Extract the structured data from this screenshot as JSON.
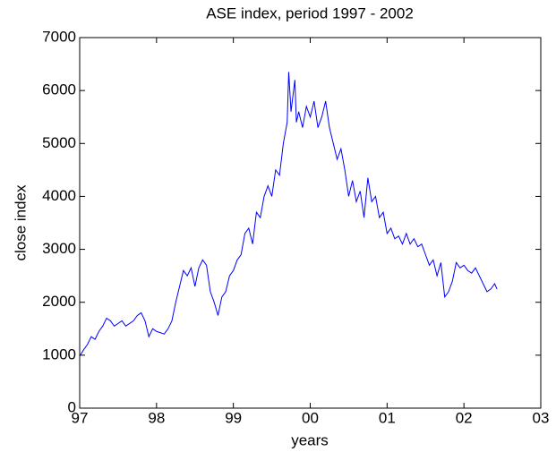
{
  "chart_data": {
    "type": "line",
    "title": "ASE index, period 1997 - 2002",
    "xlabel": "years",
    "ylabel": "close index",
    "x": [
      1997.0,
      1997.05,
      1997.1,
      1997.15,
      1997.2,
      1997.25,
      1997.3,
      1997.35,
      1997.4,
      1997.45,
      1997.5,
      1997.55,
      1997.6,
      1997.7,
      1997.75,
      1997.8,
      1997.85,
      1997.9,
      1997.95,
      1998.0,
      1998.1,
      1998.15,
      1998.2,
      1998.25,
      1998.3,
      1998.35,
      1998.4,
      1998.45,
      1998.5,
      1998.55,
      1998.6,
      1998.65,
      1998.7,
      1998.75,
      1998.8,
      1998.85,
      1998.9,
      1998.95,
      1999.0,
      1999.05,
      1999.1,
      1999.15,
      1999.2,
      1999.25,
      1999.3,
      1999.35,
      1999.4,
      1999.45,
      1999.5,
      1999.55,
      1999.6,
      1999.65,
      1999.7,
      1999.72,
      1999.75,
      1999.8,
      1999.82,
      1999.85,
      1999.9,
      1999.95,
      2000.0,
      2000.05,
      2000.1,
      2000.15,
      2000.2,
      2000.25,
      2000.3,
      2000.35,
      2000.4,
      2000.45,
      2000.5,
      2000.55,
      2000.6,
      2000.65,
      2000.7,
      2000.75,
      2000.8,
      2000.85,
      2000.9,
      2000.95,
      2001.0,
      2001.05,
      2001.1,
      2001.15,
      2001.2,
      2001.25,
      2001.3,
      2001.35,
      2001.4,
      2001.45,
      2001.5,
      2001.55,
      2001.6,
      2001.65,
      2001.7,
      2001.75,
      2001.8,
      2001.85,
      2001.9,
      2001.95,
      2002.0,
      2002.05,
      2002.1,
      2002.15,
      2002.2,
      2002.25,
      2002.3,
      2002.35,
      2002.4,
      2002.43
    ],
    "series": [
      {
        "name": "ASE",
        "color": "#0000ff",
        "values": [
          980,
          1100,
          1200,
          1350,
          1300,
          1450,
          1550,
          1700,
          1650,
          1550,
          1600,
          1650,
          1550,
          1650,
          1750,
          1800,
          1650,
          1350,
          1500,
          1450,
          1400,
          1500,
          1650,
          2000,
          2300,
          2600,
          2500,
          2650,
          2300,
          2650,
          2800,
          2700,
          2200,
          2000,
          1750,
          2100,
          2200,
          2500,
          2600,
          2800,
          2900,
          3300,
          3400,
          3100,
          3700,
          3600,
          4000,
          4200,
          4000,
          4500,
          4400,
          5000,
          5400,
          6350,
          5600,
          6200,
          5400,
          5600,
          5300,
          5700,
          5500,
          5800,
          5300,
          5500,
          5800,
          5300,
          5000,
          4700,
          4900,
          4500,
          4000,
          4300,
          3900,
          4100,
          3600,
          4350,
          3900,
          4000,
          3600,
          3700,
          3300,
          3400,
          3200,
          3250,
          3100,
          3300,
          3100,
          3200,
          3050,
          3100,
          2900,
          2700,
          2800,
          2500,
          2750,
          2100,
          2200,
          2400,
          2750,
          2650,
          2700,
          2600,
          2550,
          2650,
          2500,
          2350,
          2200,
          2250,
          2350,
          2250
        ]
      }
    ],
    "xlim": [
      1997,
      2003
    ],
    "xticks": [
      {
        "value": 1997,
        "label": "97"
      },
      {
        "value": 1998,
        "label": "98"
      },
      {
        "value": 1999,
        "label": "99"
      },
      {
        "value": 2000,
        "label": "00"
      },
      {
        "value": 2001,
        "label": "01"
      },
      {
        "value": 2002,
        "label": "02"
      },
      {
        "value": 2003,
        "label": "03"
      }
    ],
    "ylim": [
      0,
      7000
    ],
    "yticks": [
      0,
      1000,
      2000,
      3000,
      4000,
      5000,
      6000,
      7000
    ],
    "grid": false
  }
}
